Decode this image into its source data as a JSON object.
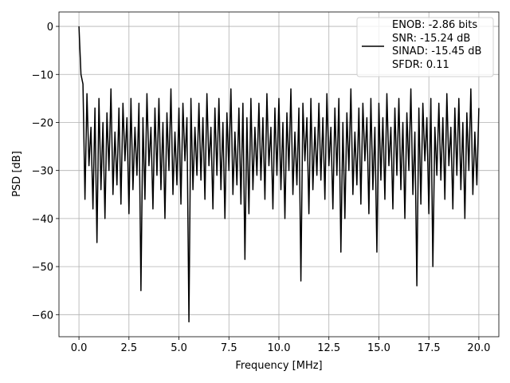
{
  "chart_data": {
    "type": "line",
    "xlabel": "Frequency [MHz]",
    "ylabel": "PSD [dB]",
    "xlim": [
      -1,
      21
    ],
    "ylim": [
      -64.6,
      3.0
    ],
    "xticks": [
      {
        "value": 0,
        "label": "0.0"
      },
      2.5,
      {
        "value": 5,
        "label": "5.0"
      },
      7.5,
      {
        "value": 10,
        "label": "10.0"
      },
      12.5,
      {
        "value": 15,
        "label": "15.0"
      },
      17.5,
      {
        "value": 20,
        "label": "20.0"
      }
    ],
    "yticks": [
      {
        "value": -60,
        "label": "−60"
      },
      {
        "value": -50,
        "label": "−50"
      },
      {
        "value": -40,
        "label": "−40"
      },
      {
        "value": -30,
        "label": "−30"
      },
      {
        "value": -20,
        "label": "−20"
      },
      {
        "value": -10,
        "label": "−10"
      },
      0
    ],
    "grid": true,
    "legend": "upper right",
    "x": [
      0,
      0.1,
      0.2,
      0.3,
      0.4,
      0.5,
      0.6,
      0.7,
      0.8,
      0.9,
      1,
      1.1,
      1.2,
      1.3,
      1.4,
      1.5,
      1.6,
      1.7,
      1.8,
      1.9,
      2,
      2.1,
      2.2,
      2.3,
      2.4,
      2.5,
      2.6,
      2.7,
      2.8,
      2.9,
      3,
      3.1,
      3.2,
      3.3,
      3.4,
      3.5,
      3.6,
      3.7,
      3.8,
      3.9,
      4,
      4.1,
      4.2,
      4.3,
      4.4,
      4.5,
      4.6,
      4.7,
      4.8,
      4.9,
      5,
      5.1,
      5.2,
      5.3,
      5.4,
      5.5,
      5.6,
      5.7,
      5.8,
      5.9,
      6,
      6.1,
      6.2,
      6.3,
      6.4,
      6.5,
      6.6,
      6.7,
      6.8,
      6.9,
      7,
      7.1,
      7.2,
      7.3,
      7.4,
      7.5,
      7.6,
      7.7,
      7.8,
      7.9,
      8,
      8.1,
      8.2,
      8.3,
      8.4,
      8.5,
      8.6,
      8.7,
      8.8,
      8.9,
      9,
      9.1,
      9.2,
      9.3,
      9.4,
      9.5,
      9.6,
      9.7,
      9.8,
      9.9,
      10,
      10.1,
      10.2,
      10.3,
      10.4,
      10.5,
      10.6,
      10.7,
      10.8,
      10.9,
      11,
      11.1,
      11.2,
      11.3,
      11.4,
      11.5,
      11.6,
      11.7,
      11.8,
      11.9,
      12,
      12.1,
      12.2,
      12.3,
      12.4,
      12.5,
      12.6,
      12.7,
      12.8,
      12.9,
      13,
      13.1,
      13.2,
      13.3,
      13.4,
      13.5,
      13.6,
      13.7,
      13.8,
      13.9,
      14,
      14.1,
      14.2,
      14.3,
      14.4,
      14.5,
      14.6,
      14.7,
      14.8,
      14.9,
      15,
      15.1,
      15.2,
      15.3,
      15.4,
      15.5,
      15.6,
      15.7,
      15.8,
      15.9,
      16,
      16.1,
      16.2,
      16.3,
      16.4,
      16.5,
      16.6,
      16.7,
      16.8,
      16.9,
      17,
      17.1,
      17.2,
      17.3,
      17.4,
      17.5,
      17.6,
      17.7,
      17.8,
      17.9,
      18,
      18.1,
      18.2,
      18.3,
      18.4,
      18.5,
      18.6,
      18.7,
      18.8,
      18.9,
      19,
      19.1,
      19.2,
      19.3,
      19.4,
      19.5,
      19.6,
      19.7,
      19.8,
      19.9,
      20
    ],
    "series": [
      {
        "name": "ENOB: -2.86 bits\nSNR: -15.24 dB\nSINAD: -15.45 dB\nSFDR: 0.11",
        "color": "#000000",
        "values": [
          0,
          -10,
          -12,
          -36,
          -14,
          -29,
          -21,
          -38,
          -17,
          -45,
          -15,
          -34,
          -20,
          -40,
          -18,
          -30,
          -13,
          -35,
          -22,
          -33,
          -17,
          -37,
          -16,
          -28,
          -19,
          -39,
          -15,
          -34,
          -21,
          -31,
          -16,
          -55,
          -19,
          -36,
          -14,
          -29,
          -21,
          -38,
          -17,
          -31,
          -15,
          -34,
          -20,
          -40,
          -18,
          -30,
          -13,
          -35,
          -22,
          -33,
          -17,
          -37,
          -16,
          -28,
          -19,
          -61.5,
          -15,
          -34,
          -21,
          -31,
          -16,
          -32,
          -19,
          -36,
          -14,
          -29,
          -21,
          -38,
          -17,
          -31,
          -15,
          -34,
          -20,
          -40,
          -18,
          -30,
          -13,
          -35,
          -22,
          -33,
          -17,
          -37,
          -16,
          -48.5,
          -19,
          -39,
          -15,
          -34,
          -21,
          -31,
          -16,
          -32,
          -19,
          -36,
          -14,
          -29,
          -21,
          -38,
          -17,
          -31,
          -15,
          -34,
          -20,
          -40,
          -18,
          -30,
          -13,
          -35,
          -22,
          -33,
          -17,
          -53,
          -16,
          -28,
          -19,
          -39,
          -15,
          -34,
          -21,
          -31,
          -16,
          -32,
          -19,
          -36,
          -14,
          -29,
          -21,
          -38,
          -17,
          -31,
          -15,
          -47,
          -20,
          -40,
          -18,
          -30,
          -13,
          -35,
          -22,
          -33,
          -17,
          -37,
          -16,
          -28,
          -19,
          -39,
          -15,
          -34,
          -21,
          -47,
          -16,
          -32,
          -19,
          -36,
          -14,
          -29,
          -21,
          -38,
          -17,
          -31,
          -15,
          -34,
          -20,
          -40,
          -18,
          -30,
          -13,
          -35,
          -22,
          -54,
          -17,
          -37,
          -16,
          -28,
          -19,
          -39,
          -15,
          -50,
          -21,
          -31,
          -16,
          -32,
          -19,
          -36,
          -14,
          -29,
          -21,
          -38,
          -17,
          -31,
          -15,
          -34,
          -20,
          -40,
          -18,
          -30,
          -13,
          -35,
          -22,
          -33,
          -17
        ]
      }
    ]
  }
}
